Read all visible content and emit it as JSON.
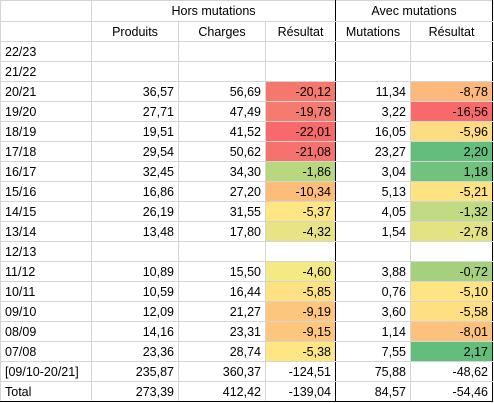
{
  "groups": {
    "hors": "Hors mutations",
    "avec": "Avec mutations"
  },
  "columns": [
    "Produits",
    "Charges",
    "Résultat",
    "Mutations",
    "Résultat"
  ],
  "rows": [
    {
      "label": "22/23",
      "produits": "",
      "charges": "",
      "resultat1": "",
      "mutations": "",
      "resultat2": "",
      "color1": "",
      "color2": ""
    },
    {
      "label": "21/22",
      "produits": "",
      "charges": "",
      "resultat1": "",
      "mutations": "",
      "resultat2": "",
      "color1": "",
      "color2": ""
    },
    {
      "label": "20/21",
      "produits": "36,57",
      "charges": "56,69",
      "resultat1": "-20,12",
      "mutations": "11,34",
      "resultat2": "-8,78",
      "color1": "#f5786f",
      "color2": "#fcb97b"
    },
    {
      "label": "19/20",
      "produits": "27,71",
      "charges": "47,49",
      "resultat1": "-19,78",
      "mutations": "3,22",
      "resultat2": "-16,56",
      "color1": "#f57b70",
      "color2": "#f8696b"
    },
    {
      "label": "18/19",
      "produits": "19,51",
      "charges": "41,52",
      "resultat1": "-22,01",
      "mutations": "16,05",
      "resultat2": "-5,96",
      "color1": "#f8696b",
      "color2": "#fedc81"
    },
    {
      "label": "17/18",
      "produits": "29,54",
      "charges": "50,62",
      "resultat1": "-21,08",
      "mutations": "23,27",
      "resultat2": "2,20",
      "color1": "#f6726e",
      "color2": "#63be7b"
    },
    {
      "label": "16/17",
      "produits": "32,45",
      "charges": "34,30",
      "resultat1": "-1,86",
      "mutations": "3,04",
      "resultat2": "1,18",
      "color1": "#b8d880",
      "color2": "#71c27c"
    },
    {
      "label": "15/16",
      "produits": "16,86",
      "charges": "27,20",
      "resultat1": "-10,34",
      "mutations": "5,13",
      "resultat2": "-5,21",
      "color1": "#fcbd7b",
      "color2": "#fee382"
    },
    {
      "label": "14/15",
      "produits": "26,19",
      "charges": "31,55",
      "resultat1": "-5,37",
      "mutations": "4,05",
      "resultat2": "-1,32",
      "color1": "#fee683",
      "color2": "#c0db81"
    },
    {
      "label": "13/14",
      "produits": "13,48",
      "charges": "17,80",
      "resultat1": "-4,32",
      "mutations": "1,54",
      "resultat2": "-2,78",
      "color1": "#e8e483",
      "color2": "#e3e383"
    },
    {
      "label": "12/13",
      "produits": "",
      "charges": "",
      "resultat1": "",
      "mutations": "",
      "resultat2": "",
      "color1": "",
      "color2": ""
    },
    {
      "label": "11/12",
      "produits": "10,89",
      "charges": "15,50",
      "resultat1": "-4,60",
      "mutations": "3,88",
      "resultat2": "-0,72",
      "color1": "#f5e984",
      "color2": "#a5d17f"
    },
    {
      "label": "10/11",
      "produits": "10,59",
      "charges": "16,44",
      "resultat1": "-5,85",
      "mutations": "0,76",
      "resultat2": "-5,10",
      "color1": "#fee182",
      "color2": "#fee483"
    },
    {
      "label": "09/10",
      "produits": "12,09",
      "charges": "21,27",
      "resultat1": "-9,19",
      "mutations": "3,60",
      "resultat2": "-5,58",
      "color1": "#fdc57d",
      "color2": "#fedf81"
    },
    {
      "label": "08/09",
      "produits": "14,16",
      "charges": "23,31",
      "resultat1": "-9,15",
      "mutations": "1,14",
      "resultat2": "-8,01",
      "color1": "#fdc67d",
      "color2": "#fcc17c"
    },
    {
      "label": "07/08",
      "produits": "23,36",
      "charges": "28,74",
      "resultat1": "-5,38",
      "mutations": "7,55",
      "resultat2": "2,17",
      "color1": "#fee683",
      "color2": "#63be7b"
    },
    {
      "label": "[09/10-20/21]",
      "produits": "235,87",
      "charges": "360,37",
      "resultat1": "-124,51",
      "mutations": "75,88",
      "resultat2": "-48,62",
      "color1": "",
      "color2": ""
    },
    {
      "label": "Total",
      "produits": "273,39",
      "charges": "412,42",
      "resultat1": "-139,04",
      "mutations": "84,57",
      "resultat2": "-54,46",
      "color1": "",
      "color2": ""
    }
  ]
}
